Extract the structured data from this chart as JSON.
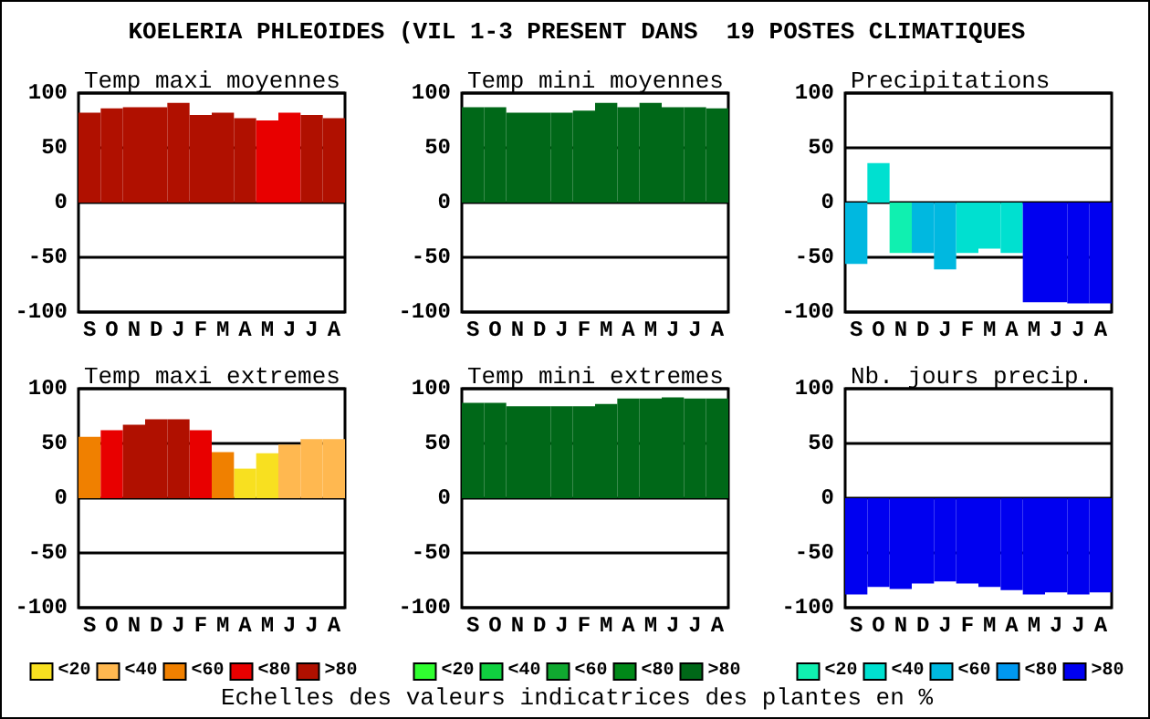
{
  "chart_data": [
    {
      "type": "other",
      "title": "KOELERIA PHLEOIDES (VIL 1-3 PRESENT DANS  19 POSTES CLIMATIQUES",
      "annotations": [
        "Echelles des valeurs indicatrices des plantes en %"
      ]
    },
    {
      "type": "bar",
      "title": "Temp maxi moyennes",
      "categories": [
        "S",
        "O",
        "N",
        "D",
        "J",
        "F",
        "M",
        "A",
        "M",
        "J",
        "J",
        "A"
      ],
      "values": [
        82,
        86,
        87,
        87,
        91,
        80,
        82,
        77,
        75,
        82,
        80,
        77
      ],
      "colors": [
        "#b01000",
        "#b01000",
        "#b01000",
        "#b01000",
        "#b01000",
        "#b01000",
        "#b01000",
        "#b01000",
        "#e80000",
        "#e80000",
        "#b01000",
        "#b01000"
      ],
      "ylim": [
        -100,
        100
      ],
      "yticks": [
        -100,
        -50,
        0,
        50,
        100
      ],
      "grid": "y"
    },
    {
      "type": "bar",
      "title": "Temp mini moyennes",
      "categories": [
        "S",
        "O",
        "N",
        "D",
        "J",
        "F",
        "M",
        "A",
        "M",
        "J",
        "J",
        "A"
      ],
      "values": [
        87,
        87,
        82,
        82,
        82,
        84,
        91,
        87,
        91,
        87,
        87,
        86
      ],
      "colors": [
        "#006818",
        "#006818",
        "#006818",
        "#006818",
        "#006818",
        "#006818",
        "#006818",
        "#006818",
        "#006818",
        "#006818",
        "#006818",
        "#006818"
      ],
      "ylim": [
        -100,
        100
      ],
      "yticks": [
        -100,
        -50,
        0,
        50,
        100
      ],
      "grid": "y"
    },
    {
      "type": "bar",
      "title": "Precipitations",
      "categories": [
        "S",
        "O",
        "N",
        "D",
        "J",
        "F",
        "M",
        "A",
        "M",
        "J",
        "J",
        "A"
      ],
      "values": [
        -56,
        36,
        -46,
        -46,
        -61,
        -46,
        -42,
        -46,
        -91,
        -91,
        -92,
        -92
      ],
      "colors": [
        "#00b8e0",
        "#00e0d0",
        "#10f0b0",
        "#00b8e0",
        "#00b8e0",
        "#00e0d0",
        "#00e0d0",
        "#00e0d0",
        "#0000f0",
        "#0000f0",
        "#0000f0",
        "#0000f0"
      ],
      "ylim": [
        -100,
        100
      ],
      "yticks": [
        -100,
        -50,
        0,
        50,
        100
      ],
      "grid": "y"
    },
    {
      "type": "bar",
      "title": "Temp maxi extremes",
      "categories": [
        "S",
        "O",
        "N",
        "D",
        "J",
        "F",
        "M",
        "A",
        "M",
        "J",
        "J",
        "A"
      ],
      "series": [
        {
          "name": "<20",
          "color": "#f8e020",
          "values": [
            null,
            null,
            null,
            null,
            null,
            null,
            null,
            27,
            41,
            null,
            null,
            null
          ]
        },
        {
          "name": "<40",
          "color": "#ffb850",
          "values": [
            null,
            null,
            null,
            null,
            null,
            null,
            null,
            null,
            null,
            49,
            54,
            54
          ]
        },
        {
          "name": "<60",
          "color": "#f08000",
          "values": [
            56,
            null,
            null,
            null,
            null,
            null,
            42,
            null,
            null,
            null,
            null,
            null
          ]
        },
        {
          "name": "<80",
          "color": "#e80000",
          "values": [
            null,
            62,
            null,
            null,
            null,
            62,
            null,
            null,
            null,
            null,
            null,
            null
          ]
        },
        {
          "name": ">80",
          "color": "#b01000",
          "values": [
            null,
            null,
            67,
            72,
            72,
            null,
            null,
            null,
            null,
            null,
            null,
            null
          ]
        }
      ],
      "ylim": [
        -100,
        100
      ],
      "yticks": [
        -100,
        -50,
        0,
        50,
        100
      ],
      "grid": "y",
      "legend": "bottom"
    },
    {
      "type": "bar",
      "title": "Temp mini extremes",
      "categories": [
        "S",
        "O",
        "N",
        "D",
        "J",
        "F",
        "M",
        "A",
        "M",
        "J",
        "J",
        "A"
      ],
      "series": [
        {
          "name": "<20",
          "color": "#30ff30",
          "values": [
            null,
            null,
            null,
            null,
            null,
            null,
            null,
            null,
            null,
            null,
            null,
            null
          ]
        },
        {
          "name": "<40",
          "color": "#10d040",
          "values": [
            null,
            null,
            null,
            null,
            null,
            null,
            null,
            null,
            null,
            null,
            null,
            null
          ]
        },
        {
          "name": "<60",
          "color": "#10a830",
          "values": [
            null,
            null,
            null,
            null,
            null,
            null,
            null,
            null,
            null,
            null,
            null,
            null
          ]
        },
        {
          "name": "<80",
          "color": "#008818",
          "values": [
            null,
            null,
            null,
            null,
            null,
            null,
            null,
            null,
            null,
            null,
            null,
            null
          ]
        },
        {
          "name": ">80",
          "color": "#006818",
          "values": [
            87,
            87,
            84,
            84,
            84,
            84,
            86,
            91,
            91,
            92,
            91,
            91
          ]
        }
      ],
      "ylim": [
        -100,
        100
      ],
      "yticks": [
        -100,
        -50,
        0,
        50,
        100
      ],
      "grid": "y",
      "legend": "bottom"
    },
    {
      "type": "bar",
      "title": "Nb. jours precip.",
      "categories": [
        "S",
        "O",
        "N",
        "D",
        "J",
        "F",
        "M",
        "A",
        "M",
        "J",
        "J",
        "A"
      ],
      "series": [
        {
          "name": "<20",
          "color": "#10f0b0",
          "values": [
            null,
            null,
            null,
            null,
            null,
            null,
            null,
            null,
            null,
            null,
            null,
            null
          ]
        },
        {
          "name": "<40",
          "color": "#00e0d0",
          "values": [
            null,
            null,
            null,
            null,
            null,
            null,
            null,
            null,
            null,
            null,
            null,
            null
          ]
        },
        {
          "name": "<60",
          "color": "#00b8e0",
          "values": [
            null,
            null,
            null,
            null,
            null,
            null,
            null,
            null,
            null,
            null,
            null,
            null
          ]
        },
        {
          "name": "<80",
          "color": "#0098f0",
          "values": [
            null,
            null,
            null,
            null,
            null,
            null,
            null,
            null,
            null,
            null,
            null,
            null
          ]
        },
        {
          "name": ">80",
          "color": "#0000f0",
          "values": [
            -88,
            -81,
            -83,
            -78,
            -76,
            -78,
            -81,
            -84,
            -88,
            -86,
            -88,
            -86
          ]
        }
      ],
      "ylim": [
        -100,
        100
      ],
      "yticks": [
        -100,
        -50,
        0,
        50,
        100
      ],
      "grid": "y",
      "legend": "bottom"
    }
  ]
}
